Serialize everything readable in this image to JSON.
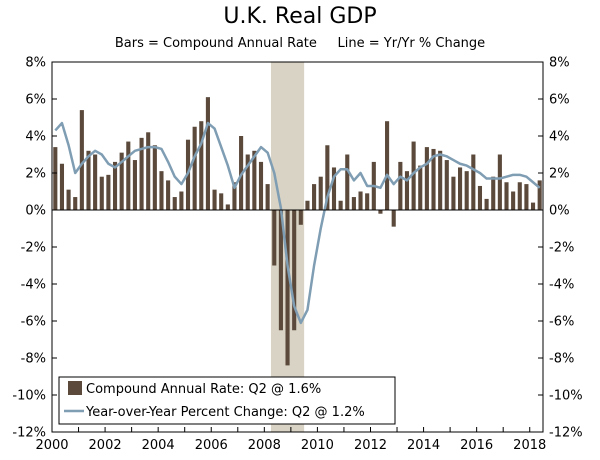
{
  "chart_data": {
    "type": "bar",
    "title": "U.K. Real GDP",
    "subtitle": "Bars = Compound Annual Rate     Line = Yr/Yr % Change",
    "ylim": [
      -12,
      8
    ],
    "yticks": [
      8,
      6,
      4,
      2,
      0,
      -2,
      -4,
      -6,
      -8,
      -10,
      -12
    ],
    "ytick_labels": [
      "8%",
      "6%",
      "4%",
      "2%",
      "0%",
      "-2%",
      "-4%",
      "-6%",
      "-8%",
      "-10%",
      "-12%"
    ],
    "xlim": [
      2000,
      2018.5
    ],
    "xticks": [
      2000,
      2002,
      2004,
      2006,
      2008,
      2010,
      2012,
      2014,
      2016,
      2018
    ],
    "xtick_labels": [
      "2000",
      "2002",
      "2004",
      "2006",
      "2008",
      "2010",
      "2012",
      "2014",
      "2016",
      "2018"
    ],
    "recession": [
      2008.25,
      2009.5
    ],
    "colors": {
      "bars": "#5b4a3c",
      "line": "#7f9db3",
      "recession": "#d8d3c4"
    },
    "series": [
      {
        "name": "Compound Annual Rate: Q2 @ 1.6%",
        "type": "bar",
        "start": 2000,
        "values": [
          3.4,
          2.5,
          1.1,
          0.7,
          5.4,
          3.2,
          3.0,
          1.8,
          1.9,
          2.6,
          3.1,
          3.7,
          2.7,
          3.9,
          4.2,
          3.5,
          2.1,
          1.6,
          0.7,
          1.0,
          3.8,
          4.5,
          4.8,
          6.1,
          1.1,
          0.9,
          0.3,
          1.5,
          4.0,
          3.0,
          3.2,
          2.6,
          1.4,
          -3.0,
          -6.5,
          -8.4,
          -6.5,
          -0.8,
          0.5,
          1.4,
          1.8,
          3.5,
          2.3,
          0.5,
          3.0,
          0.7,
          1.0,
          0.9,
          2.6,
          -0.2,
          4.8,
          -0.9,
          2.6,
          2.1,
          3.7,
          2.4,
          3.4,
          3.3,
          3.2,
          2.7,
          1.8,
          2.3,
          2.1,
          3.0,
          1.3,
          0.6,
          1.8,
          3.0,
          1.5,
          1.0,
          1.5,
          1.4,
          0.4,
          1.6
        ]
      },
      {
        "name": "Year-over-Year Percent Change: Q2 @ 1.2%",
        "type": "line",
        "start": 2000,
        "values": [
          4.3,
          4.7,
          3.5,
          2.0,
          2.5,
          2.9,
          3.2,
          3.0,
          2.5,
          2.3,
          2.6,
          2.9,
          3.2,
          3.3,
          3.4,
          3.4,
          3.3,
          2.6,
          1.8,
          1.4,
          2.0,
          2.9,
          3.6,
          4.7,
          4.4,
          3.4,
          2.4,
          1.2,
          1.9,
          2.4,
          2.9,
          3.4,
          3.1,
          2.0,
          0.1,
          -3.0,
          -5.2,
          -6.1,
          -5.4,
          -3.0,
          -1.0,
          0.7,
          1.8,
          2.2,
          2.2,
          1.6,
          2.0,
          1.3,
          1.3,
          1.2,
          1.9,
          1.4,
          1.8,
          1.6,
          2.0,
          2.3,
          2.5,
          2.9,
          3.0,
          2.9,
          2.7,
          2.5,
          2.4,
          2.2,
          2.0,
          1.7,
          1.7,
          1.7,
          1.8,
          1.9,
          1.9,
          1.8,
          1.5,
          1.2
        ]
      }
    ]
  }
}
